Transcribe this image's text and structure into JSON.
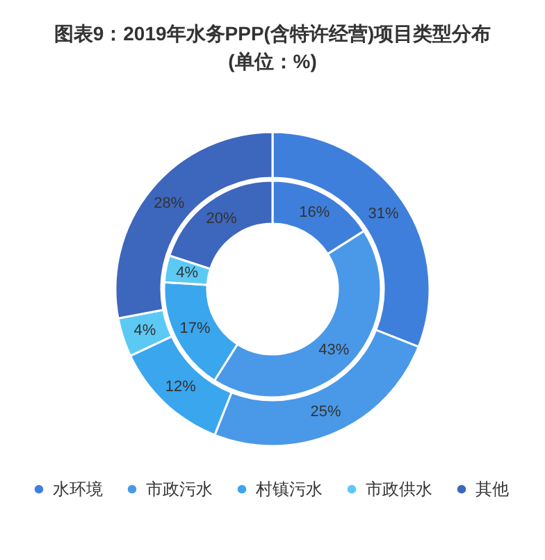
{
  "chart_data": {
    "type": "donut",
    "title": "图表9：2019年水务PPP(含特许经营)项目类型分布(单位：%)",
    "categories": [
      "水环境",
      "市政污水",
      "村镇污水",
      "市政供水",
      "其他"
    ],
    "colors": [
      "#3f7fdc",
      "#4a98e8",
      "#3aa6ee",
      "#5cc9f5",
      "#3d66bd"
    ],
    "legend": "bottom",
    "series": [
      {
        "values": [
          31,
          25,
          12,
          4,
          28
        ],
        "value_labels": [
          "31%",
          "25%",
          "12%",
          "4%",
          "28%"
        ]
      },
      {
        "values": [
          16,
          43,
          17,
          4,
          20
        ],
        "value_labels": [
          "16%",
          "43%",
          "17%",
          "4%",
          "20%"
        ]
      }
    ]
  }
}
